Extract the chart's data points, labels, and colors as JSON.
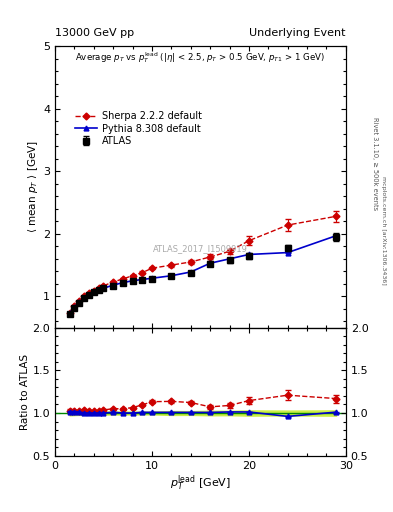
{
  "title_left": "13000 GeV pp",
  "title_right": "Underlying Event",
  "right_label1": "Rivet 3.1.10, ≥ 500k events",
  "right_label2": "mcplots.cern.ch [arXiv:1306.3436]",
  "watermark": "ATLAS_2017_I1509919",
  "ylabel_main": "⟨ mean p_T ⟩ [GeV]",
  "ylabel_ratio": "Ratio to ATLAS",
  "xlabel": "p_T^lead [GeV]",
  "ylim_main": [
    0.5,
    5.0
  ],
  "ylim_ratio": [
    0.5,
    2.0
  ],
  "xlim": [
    0,
    30
  ],
  "atlas_x": [
    1.5,
    2.0,
    2.5,
    3.0,
    3.5,
    4.0,
    4.5,
    5.0,
    6.0,
    7.0,
    8.0,
    9.0,
    10.0,
    12.0,
    14.0,
    16.0,
    18.0,
    20.0,
    24.0,
    29.0
  ],
  "atlas_y": [
    0.72,
    0.82,
    0.9,
    0.97,
    1.02,
    1.07,
    1.1,
    1.13,
    1.17,
    1.22,
    1.25,
    1.26,
    1.28,
    1.32,
    1.38,
    1.52,
    1.58,
    1.65,
    1.77,
    1.95
  ],
  "atlas_yerr": [
    0.02,
    0.02,
    0.02,
    0.02,
    0.02,
    0.02,
    0.02,
    0.02,
    0.02,
    0.02,
    0.02,
    0.02,
    0.02,
    0.03,
    0.03,
    0.04,
    0.04,
    0.05,
    0.05,
    0.06
  ],
  "pythia_x": [
    1.5,
    2.0,
    2.5,
    3.0,
    3.5,
    4.0,
    4.5,
    5.0,
    6.0,
    7.0,
    8.0,
    9.0,
    10.0,
    12.0,
    14.0,
    16.0,
    18.0,
    20.0,
    24.0,
    29.0
  ],
  "pythia_y": [
    0.73,
    0.83,
    0.91,
    0.97,
    1.02,
    1.07,
    1.1,
    1.13,
    1.18,
    1.22,
    1.25,
    1.27,
    1.29,
    1.33,
    1.39,
    1.53,
    1.6,
    1.67,
    1.7,
    1.97
  ],
  "pythia_yerr": [
    0.005,
    0.005,
    0.005,
    0.005,
    0.005,
    0.005,
    0.005,
    0.005,
    0.005,
    0.005,
    0.005,
    0.005,
    0.005,
    0.006,
    0.006,
    0.007,
    0.007,
    0.008,
    0.008,
    0.01
  ],
  "sherpa_x": [
    1.5,
    2.0,
    2.5,
    3.0,
    3.5,
    4.0,
    4.5,
    5.0,
    6.0,
    7.0,
    8.0,
    9.0,
    10.0,
    12.0,
    14.0,
    16.0,
    18.0,
    20.0,
    24.0,
    29.0
  ],
  "sherpa_y": [
    0.74,
    0.84,
    0.92,
    1.0,
    1.05,
    1.09,
    1.13,
    1.17,
    1.23,
    1.28,
    1.33,
    1.38,
    1.45,
    1.5,
    1.55,
    1.63,
    1.72,
    1.89,
    2.14,
    2.28
  ],
  "sherpa_yerr": [
    0.01,
    0.01,
    0.01,
    0.01,
    0.01,
    0.01,
    0.01,
    0.01,
    0.015,
    0.015,
    0.015,
    0.02,
    0.02,
    0.025,
    0.03,
    0.04,
    0.04,
    0.07,
    0.1,
    0.09
  ],
  "atlas_color": "#000000",
  "pythia_color": "#0000cc",
  "sherpa_color": "#cc0000",
  "band_color": "#ccee44",
  "band_edge_color": "#008800"
}
